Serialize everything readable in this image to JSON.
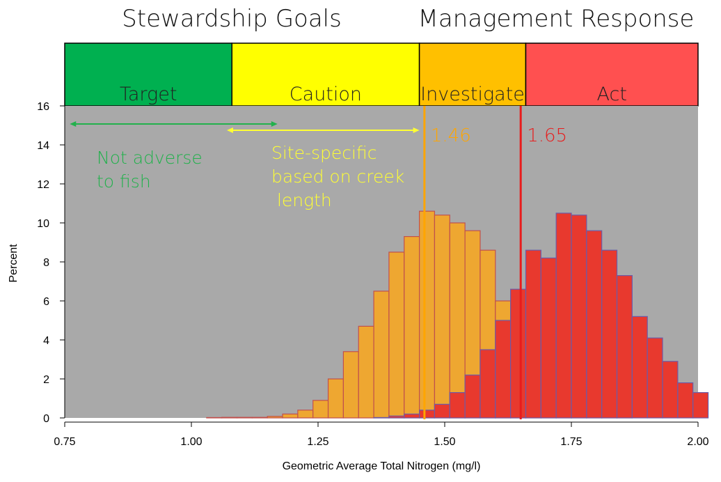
{
  "headers": {
    "left": "Stewardship Goals",
    "right": "Management Response"
  },
  "zones": [
    {
      "label": "Target",
      "from": 0.75,
      "to": 1.08,
      "color": "#00b050"
    },
    {
      "label": "Caution",
      "from": 1.08,
      "to": 1.45,
      "color": "#ffff00"
    },
    {
      "label": "Investigate",
      "from": 1.45,
      "to": 1.66,
      "color": "#ffc000"
    },
    {
      "label": "Act",
      "from": 1.66,
      "to": 2.0,
      "color": "#ff5050"
    }
  ],
  "annotations": [
    {
      "lines": [
        "Not adverse",
        "to fish"
      ],
      "color": "#22b14c",
      "arrow_from": 0.76,
      "arrow_to": 1.17
    },
    {
      "lines": [
        "Site-specific",
        "based on creek",
        " length"
      ],
      "color": "#ffff33",
      "arrow_from": 1.07,
      "arrow_to": 1.45
    }
  ],
  "thresholds": [
    {
      "value": 1.46,
      "label": "1.46",
      "color": "#ffa500"
    },
    {
      "value": 1.65,
      "label": "1.65",
      "color": "#e81c1c"
    }
  ],
  "colors": {
    "plot_background": "#a9a9a9",
    "orange_fill": "#f5a623",
    "orange_stroke": "#c0504d",
    "red_fill": "#e8392e",
    "red_stroke": "#6b5ba8"
  },
  "chart_data": {
    "type": "bar",
    "title": "",
    "xlabel": "Geometric Average Total Nitrogen (mg/l)",
    "ylabel": "Percent",
    "xlim": [
      0.75,
      2.0
    ],
    "ylim": [
      0,
      16
    ],
    "xticks": [
      "0.75",
      "1.00",
      "1.25",
      "1.50",
      "1.75",
      "2.00"
    ],
    "yticks": [
      "0",
      "2",
      "4",
      "6",
      "8",
      "10",
      "12",
      "14",
      "16"
    ],
    "grid": false,
    "bin_start": 1.0,
    "bin_width": 0.03,
    "series": [
      {
        "values": [
          0.0,
          0.02,
          0.03,
          0.03,
          0.03,
          0.08,
          0.2,
          0.4,
          0.9,
          2.0,
          3.4,
          4.7,
          6.5,
          8.5,
          9.3,
          10.6,
          10.4,
          10.0,
          9.6,
          8.6,
          6.0,
          3.5,
          2.0,
          1.0,
          0.5,
          0.3,
          0.12,
          0.05,
          0.02,
          0.0,
          0.0,
          0.0,
          0.0,
          0.0
        ]
      },
      {
        "values": [
          0.0,
          0.0,
          0.0,
          0.0,
          0.0,
          0.0,
          0.0,
          0.0,
          0.0,
          0.0,
          0.0,
          0.0,
          0.02,
          0.1,
          0.2,
          0.4,
          0.7,
          1.3,
          2.2,
          3.5,
          5.0,
          6.6,
          8.6,
          8.2,
          10.5,
          10.4,
          9.6,
          8.6,
          7.3,
          5.2,
          4.1,
          2.9,
          1.8,
          1.3
        ]
      }
    ]
  }
}
